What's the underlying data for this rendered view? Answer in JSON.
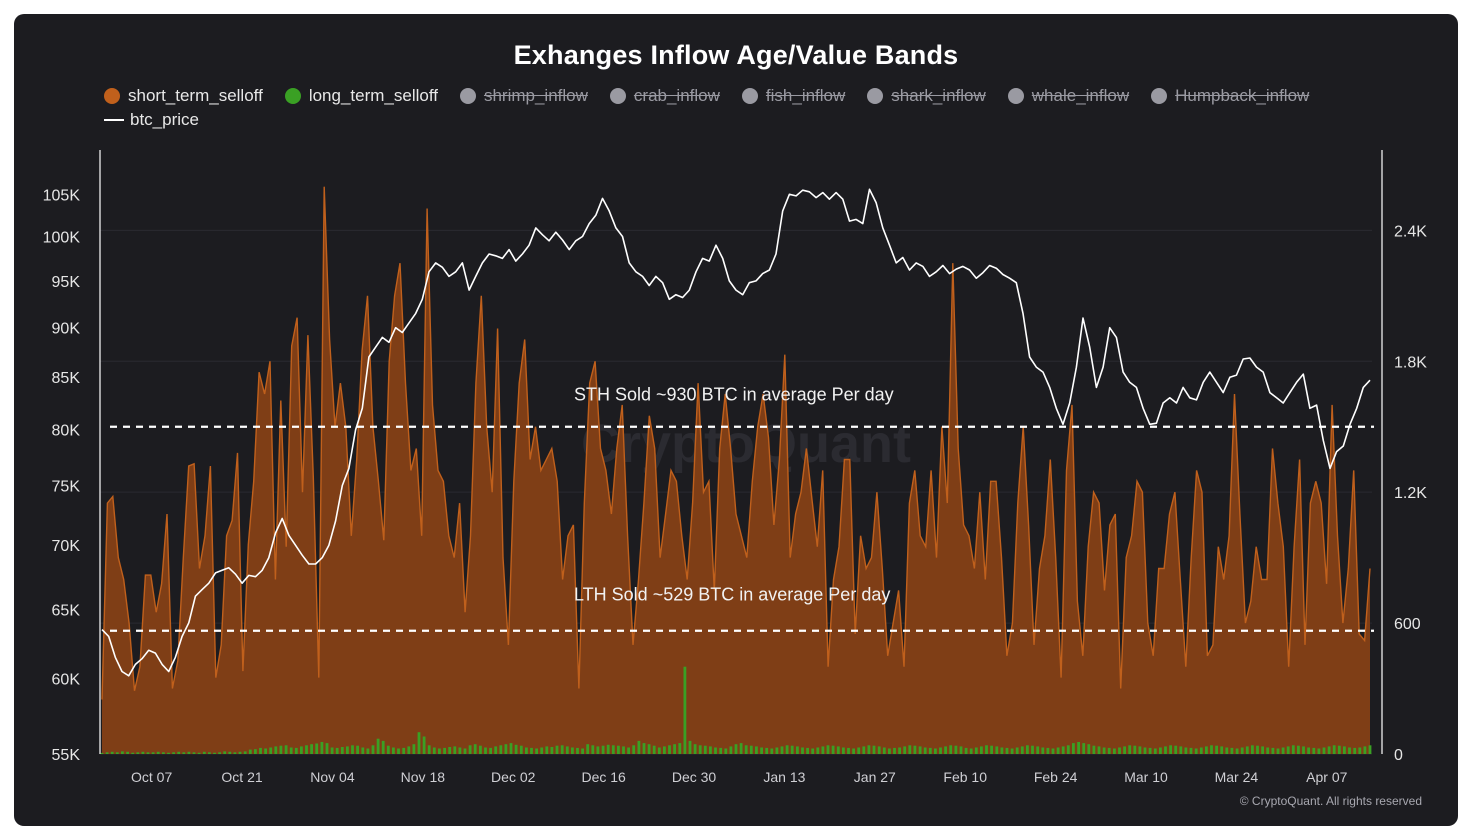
{
  "chart_data": {
    "type": "area",
    "title": "Exhanges Inflow Age/Value Bands",
    "watermark": "CryptoQuant",
    "copyright": "© CryptoQuant. All rights reserved",
    "x_ticks": [
      "Oct 07",
      "Oct 21",
      "Nov 04",
      "Nov 18",
      "Dec 02",
      "Dec 16",
      "Dec 30",
      "Jan 13",
      "Jan 27",
      "Feb 10",
      "Feb 24",
      "Mar 10",
      "Mar 24",
      "Apr 07"
    ],
    "x_range": [
      "2024-09-29",
      "2025-04-14"
    ],
    "left_axis": {
      "ticks": [
        "105K",
        "100K",
        "95K",
        "90K",
        "85K",
        "80K",
        "75K",
        "70K",
        "65K",
        "60K",
        "55K"
      ],
      "values": [
        105000,
        100000,
        95000,
        90000,
        85000,
        80000,
        75000,
        70000,
        65000,
        60000,
        55000
      ],
      "scale": "log",
      "ylim": [
        55000,
        110000
      ]
    },
    "right_axis": {
      "ticks": [
        "2.4K",
        "1.8K",
        "1.2K",
        "600",
        "0"
      ],
      "values": [
        2400,
        1800,
        1200,
        600,
        0
      ],
      "ylim": [
        0,
        2750
      ]
    },
    "legend": [
      {
        "name": "short_term_selloff",
        "color": "#c0601c",
        "active": true,
        "shape": "dot"
      },
      {
        "name": "long_term_selloff",
        "color": "#3aa024",
        "active": true,
        "shape": "dot"
      },
      {
        "name": "shrimp_inflow",
        "color": "#9a9aa2",
        "active": false,
        "shape": "dot"
      },
      {
        "name": "crab_inflow",
        "color": "#9a9aa2",
        "active": false,
        "shape": "dot"
      },
      {
        "name": "fish_inflow",
        "color": "#9a9aa2",
        "active": false,
        "shape": "dot"
      },
      {
        "name": "shark_inflow",
        "color": "#9a9aa2",
        "active": false,
        "shape": "dot"
      },
      {
        "name": "whale_inflow",
        "color": "#9a9aa2",
        "active": false,
        "shape": "dot"
      },
      {
        "name": "Humpback_inflow",
        "color": "#9a9aa2",
        "active": false,
        "shape": "dot"
      },
      {
        "name": "btc_price",
        "color": "#ffffff",
        "active": true,
        "shape": "line"
      }
    ],
    "annotations": [
      {
        "text": "STH Sold ~930 BTC  in average Per day",
        "value": 1500,
        "axis": "right"
      },
      {
        "text": "LTH Sold ~529 BTC in average Per day",
        "value": 565,
        "axis": "right"
      }
    ],
    "series": [
      {
        "name": "short_term_selloff",
        "axis": "right",
        "type": "area",
        "color": "#c0601c",
        "values": [
          250,
          1150,
          1180,
          900,
          800,
          600,
          290,
          400,
          820,
          820,
          650,
          780,
          1100,
          300,
          430,
          900,
          1320,
          1330,
          850,
          1000,
          1320,
          350,
          500,
          1000,
          1070,
          1380,
          380,
          960,
          1250,
          1750,
          1650,
          1800,
          800,
          1620,
          950,
          1870,
          2000,
          1200,
          1920,
          1270,
          350,
          2600,
          1900,
          1500,
          1700,
          1500,
          1000,
          1350,
          1850,
          2100,
          1500,
          1250,
          980,
          1800,
          2100,
          2250,
          1700,
          1300,
          1400,
          1000,
          2500,
          1600,
          1300,
          1250,
          1000,
          900,
          1150,
          650,
          1000,
          1700,
          2100,
          1500,
          1200,
          1950,
          900,
          500,
          1250,
          1700,
          1900,
          1350,
          1500,
          1300,
          1350,
          1400,
          1250,
          800,
          1000,
          1050,
          300,
          1150,
          1700,
          1800,
          1400,
          1300,
          1100,
          1400,
          1600,
          1000,
          500,
          800,
          1150,
          1550,
          1400,
          900,
          1100,
          1300,
          1250,
          1000,
          800,
          1150,
          1700,
          1200,
          1250,
          750,
          1400,
          1650,
          1400,
          1100,
          1000,
          900,
          1250,
          1500,
          1650,
          1450,
          1050,
          1350,
          1830,
          900,
          1100,
          1200,
          1400,
          1170,
          950,
          1300,
          400,
          800,
          950,
          1350,
          1350,
          550,
          1000,
          850,
          900,
          1200,
          850,
          450,
          600,
          750,
          400,
          1150,
          1300,
          1000,
          950,
          1300,
          900,
          1500,
          1150,
          2250,
          1400,
          1050,
          1000,
          850,
          1200,
          800,
          1250,
          1250,
          900,
          450,
          600,
          1150,
          1500,
          1050,
          500,
          850,
          1000,
          1350,
          900,
          350,
          1300,
          1600,
          700,
          450,
          950,
          1200,
          1150,
          750,
          1050,
          1100,
          300,
          900,
          1000,
          1250,
          1200,
          600,
          450,
          850,
          850,
          1100,
          1200,
          800,
          400,
          900,
          1300,
          1200,
          450,
          500,
          950,
          800,
          1000,
          1650,
          1100,
          600,
          700,
          950,
          800,
          800,
          1400,
          1150,
          950,
          400,
          950,
          1350,
          500,
          1150,
          1250,
          1150,
          780,
          1600,
          1000,
          600,
          850,
          1300,
          550,
          520,
          850
        ]
      },
      {
        "name": "long_term_selloff",
        "axis": "right",
        "type": "bar",
        "color": "#3aa024",
        "values": [
          5,
          8,
          10,
          8,
          12,
          10,
          6,
          8,
          10,
          8,
          8,
          10,
          8,
          6,
          8,
          10,
          8,
          10,
          8,
          6,
          10,
          8,
          6,
          8,
          12,
          10,
          8,
          10,
          12,
          20,
          22,
          28,
          25,
          30,
          35,
          38,
          40,
          30,
          28,
          35,
          40,
          45,
          48,
          55,
          50,
          30,
          28,
          32,
          35,
          40,
          38,
          30,
          25,
          40,
          70,
          60,
          38,
          30,
          25,
          28,
          35,
          45,
          100,
          80,
          40,
          30,
          25,
          28,
          32,
          35,
          30,
          25,
          40,
          45,
          38,
          30,
          28,
          35,
          40,
          45,
          50,
          42,
          38,
          30,
          28,
          25,
          30,
          35,
          32,
          38,
          40,
          35,
          30,
          28,
          25,
          45,
          40,
          35,
          38,
          42,
          40,
          38,
          35,
          30,
          40,
          60,
          50,
          45,
          38,
          30,
          35,
          40,
          45,
          50,
          400,
          60,
          45,
          40,
          38,
          35,
          30,
          28,
          25,
          35,
          45,
          50,
          40,
          38,
          35,
          30,
          28,
          25,
          30,
          35,
          40,
          38,
          35,
          30,
          28,
          25,
          30,
          35,
          40,
          38,
          35,
          30,
          28,
          25,
          30,
          35,
          40,
          38,
          35,
          30,
          25,
          28,
          30,
          35,
          40,
          38,
          35,
          30,
          28,
          25,
          30,
          35,
          40,
          38,
          35,
          28,
          25,
          30,
          35,
          40,
          38,
          35,
          30,
          28,
          25,
          30,
          35,
          40,
          38,
          35,
          30,
          28,
          25,
          30,
          35,
          40,
          50,
          55,
          50,
          45,
          38,
          35,
          30,
          28,
          25,
          30,
          35,
          40,
          38,
          35,
          30,
          28,
          25,
          30,
          35,
          40,
          38,
          35,
          30,
          28,
          25,
          30,
          35,
          40,
          38,
          35,
          30,
          28,
          25,
          30,
          35,
          40,
          38,
          35,
          30,
          28,
          25,
          30,
          35,
          40,
          38,
          35,
          30,
          28,
          25,
          30,
          35,
          40,
          38,
          35,
          30,
          28,
          30,
          35,
          40
        ]
      },
      {
        "name": "btc_price",
        "axis": "left",
        "type": "line",
        "color": "#ffffff",
        "values": [
          63500,
          63000,
          61500,
          60500,
          60200,
          61000,
          61400,
          62000,
          61800,
          61000,
          60500,
          61500,
          63000,
          64000,
          66000,
          66500,
          67000,
          67800,
          68000,
          68200,
          67700,
          67000,
          67600,
          67500,
          68000,
          69000,
          71000,
          72200,
          70800,
          70000,
          69200,
          68500,
          68500,
          69000,
          70000,
          72000,
          75000,
          76500,
          80000,
          82000,
          87000,
          88000,
          89000,
          88500,
          90000,
          89500,
          90500,
          91500,
          93000,
          96000,
          97000,
          96500,
          95500,
          96000,
          97000,
          94000,
          95500,
          97000,
          98000,
          97800,
          97500,
          98500,
          97200,
          98000,
          99000,
          101000,
          100200,
          99500,
          100500,
          99600,
          98500,
          99500,
          100000,
          101500,
          102500,
          104500,
          103000,
          101000,
          100000,
          97000,
          96000,
          95500,
          94500,
          95500,
          94800,
          93000,
          93500,
          93200,
          94000,
          96000,
          97500,
          97200,
          99000,
          97500,
          95000,
          94000,
          93500,
          94800,
          95000,
          95800,
          96200,
          98000,
          103000,
          105000,
          104800,
          105500,
          105300,
          104600,
          105200,
          104400,
          105200,
          104400,
          101800,
          102000,
          101500,
          105600,
          104000,
          101000,
          99000,
          97000,
          97600,
          96200,
          97000,
          96600,
          95500,
          96000,
          96700,
          95800,
          96300,
          96600,
          96200,
          95300,
          95900,
          96700,
          96400,
          95700,
          95300,
          94800,
          91500,
          87000,
          86000,
          85500,
          84000,
          82000,
          80500,
          82500,
          86000,
          91000,
          88000,
          84000,
          86000,
          90000,
          89000,
          85500,
          84500,
          84000,
          82000,
          80500,
          80600,
          82500,
          83000,
          82500,
          84000,
          83000,
          82800,
          84500,
          85500,
          84500,
          83500,
          85000,
          85200,
          86800,
          86900,
          86000,
          85500,
          83500,
          83000,
          82500,
          83500,
          84500,
          85300,
          82000,
          82300,
          79000,
          76500,
          78000,
          78500,
          80500,
          82000,
          84000,
          84700
        ]
      }
    ]
  }
}
